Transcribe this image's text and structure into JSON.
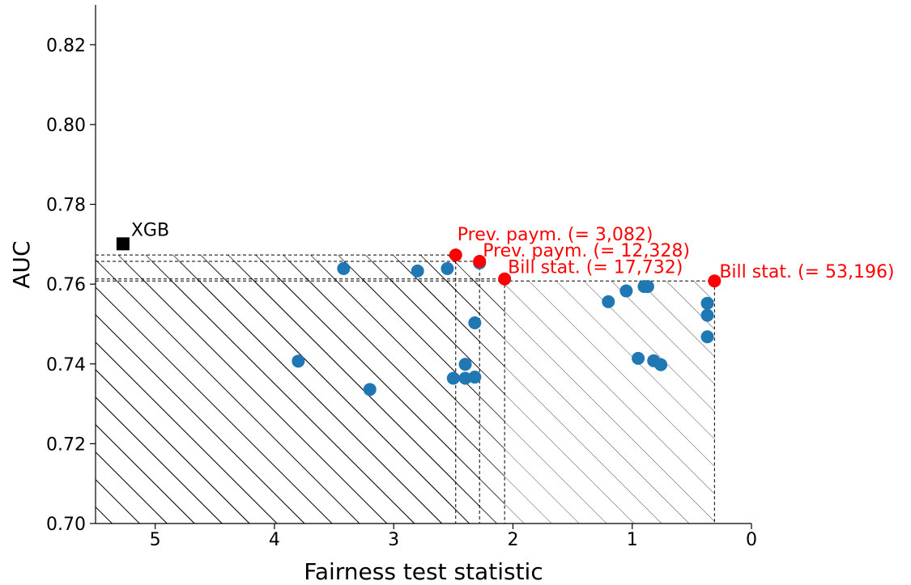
{
  "chart_data": {
    "type": "scatter",
    "xlabel": "Fairness test statistic",
    "ylabel": "AUC",
    "xlim": [
      5.5,
      0
    ],
    "ylim": [
      0.7,
      0.83
    ],
    "x_reversed": true,
    "x_ticks": [
      5,
      4,
      3,
      2,
      1,
      0
    ],
    "x_tick_labels": [
      "5",
      "4",
      "3",
      "2",
      "1",
      "0"
    ],
    "y_ticks": [
      0.7,
      0.72,
      0.74,
      0.76,
      0.78,
      0.8,
      0.82
    ],
    "y_tick_labels": [
      "0.70",
      "0.72",
      "0.74",
      "0.76",
      "0.78",
      "0.80",
      "0.82"
    ],
    "grid": false,
    "colors": {
      "points": "#1f77b4",
      "highlight": "#ff0000",
      "baseline": "#000000"
    },
    "points": [
      {
        "x": 3.42,
        "y": 0.7639
      },
      {
        "x": 2.8,
        "y": 0.7633
      },
      {
        "x": 2.55,
        "y": 0.7639
      },
      {
        "x": 2.28,
        "y": 0.7653
      },
      {
        "x": 2.32,
        "y": 0.7503
      },
      {
        "x": 2.4,
        "y": 0.7399
      },
      {
        "x": 2.5,
        "y": 0.7364
      },
      {
        "x": 2.4,
        "y": 0.7364
      },
      {
        "x": 2.32,
        "y": 0.7367
      },
      {
        "x": 3.8,
        "y": 0.7407
      },
      {
        "x": 3.2,
        "y": 0.7336
      },
      {
        "x": 1.2,
        "y": 0.7556
      },
      {
        "x": 1.05,
        "y": 0.7583
      },
      {
        "x": 0.9,
        "y": 0.7594
      },
      {
        "x": 0.87,
        "y": 0.7594
      },
      {
        "x": 0.95,
        "y": 0.7414
      },
      {
        "x": 0.82,
        "y": 0.7408
      },
      {
        "x": 0.76,
        "y": 0.7398
      },
      {
        "x": 0.37,
        "y": 0.7552
      },
      {
        "x": 0.37,
        "y": 0.7522
      },
      {
        "x": 0.37,
        "y": 0.7468
      }
    ],
    "highlighted": [
      {
        "label": "Prev. paym. (= 3,082)",
        "x": 2.48,
        "y": 0.7673
      },
      {
        "label": "Prev. paym. (= 12,328)",
        "x": 2.28,
        "y": 0.7657
      },
      {
        "label": "Bill stat. (= 17,732)",
        "x": 2.07,
        "y": 0.7613
      },
      {
        "label": "Bill stat. (= 53,196)",
        "x": 0.31,
        "y": 0.7608
      }
    ],
    "baseline": {
      "label": "XGB",
      "x": 5.27,
      "y": 0.7701
    }
  }
}
